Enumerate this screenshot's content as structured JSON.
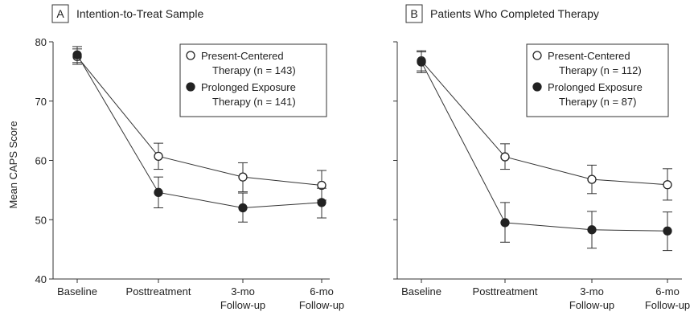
{
  "figure": {
    "ylabel": "Mean CAPS Score"
  },
  "chart_data": [
    {
      "type": "line",
      "panel_letter": "A",
      "title": "Intention-to-Treat Sample",
      "ylabel": "Mean CAPS Score",
      "ylim": [
        40,
        80
      ],
      "yticks": [
        40,
        50,
        60,
        70,
        80
      ],
      "categories": [
        [
          "Baseline"
        ],
        [
          "Posttreatment"
        ],
        [
          "3-mo",
          "Follow-up"
        ],
        [
          "6-mo",
          "Follow-up"
        ]
      ],
      "legend_position": "top-right",
      "series": [
        {
          "name": "Present-Centered Therapy (n = 143)",
          "legend_lines": [
            "Present-Centered",
            "Therapy (n = 143)"
          ],
          "marker": "open-circle",
          "values": [
            77.5,
            60.7,
            57.2,
            55.8
          ],
          "err_low": [
            76.2,
            58.5,
            54.7,
            53.3
          ],
          "err_high": [
            78.8,
            62.9,
            59.6,
            58.3
          ]
        },
        {
          "name": "Prolonged Exposure Therapy (n = 141)",
          "legend_lines": [
            "Prolonged Exposure",
            "Therapy (n = 141)"
          ],
          "marker": "filled-circle",
          "values": [
            77.8,
            54.6,
            52.0,
            52.9
          ],
          "err_low": [
            76.5,
            52.0,
            49.6,
            50.3
          ],
          "err_high": [
            79.2,
            57.2,
            54.5,
            55.3
          ]
        }
      ]
    },
    {
      "type": "line",
      "panel_letter": "B",
      "title": "Patients Who Completed Therapy",
      "ylim": [
        40,
        80
      ],
      "yticks": [
        40,
        50,
        60,
        70,
        80
      ],
      "categories": [
        [
          "Baseline"
        ],
        [
          "Posttreatment"
        ],
        [
          "3-mo",
          "Follow-up"
        ],
        [
          "6-mo",
          "Follow-up"
        ]
      ],
      "legend_position": "top-right",
      "series": [
        {
          "name": "Present-Centered Therapy (n = 112)",
          "legend_lines": [
            "Present-Centered",
            "Therapy (n = 112)"
          ],
          "marker": "open-circle",
          "values": [
            76.8,
            60.6,
            56.8,
            55.9
          ],
          "err_low": [
            75.1,
            58.5,
            54.4,
            53.3
          ],
          "err_high": [
            78.5,
            62.8,
            59.2,
            58.6
          ]
        },
        {
          "name": "Prolonged Exposure Therapy (n = 87)",
          "legend_lines": [
            "Prolonged Exposure",
            "Therapy (n = 87)"
          ],
          "marker": "filled-circle",
          "values": [
            76.6,
            49.5,
            48.3,
            48.1
          ],
          "err_low": [
            74.8,
            46.2,
            45.2,
            44.8
          ],
          "err_high": [
            78.3,
            52.9,
            51.4,
            51.3
          ]
        }
      ]
    }
  ]
}
